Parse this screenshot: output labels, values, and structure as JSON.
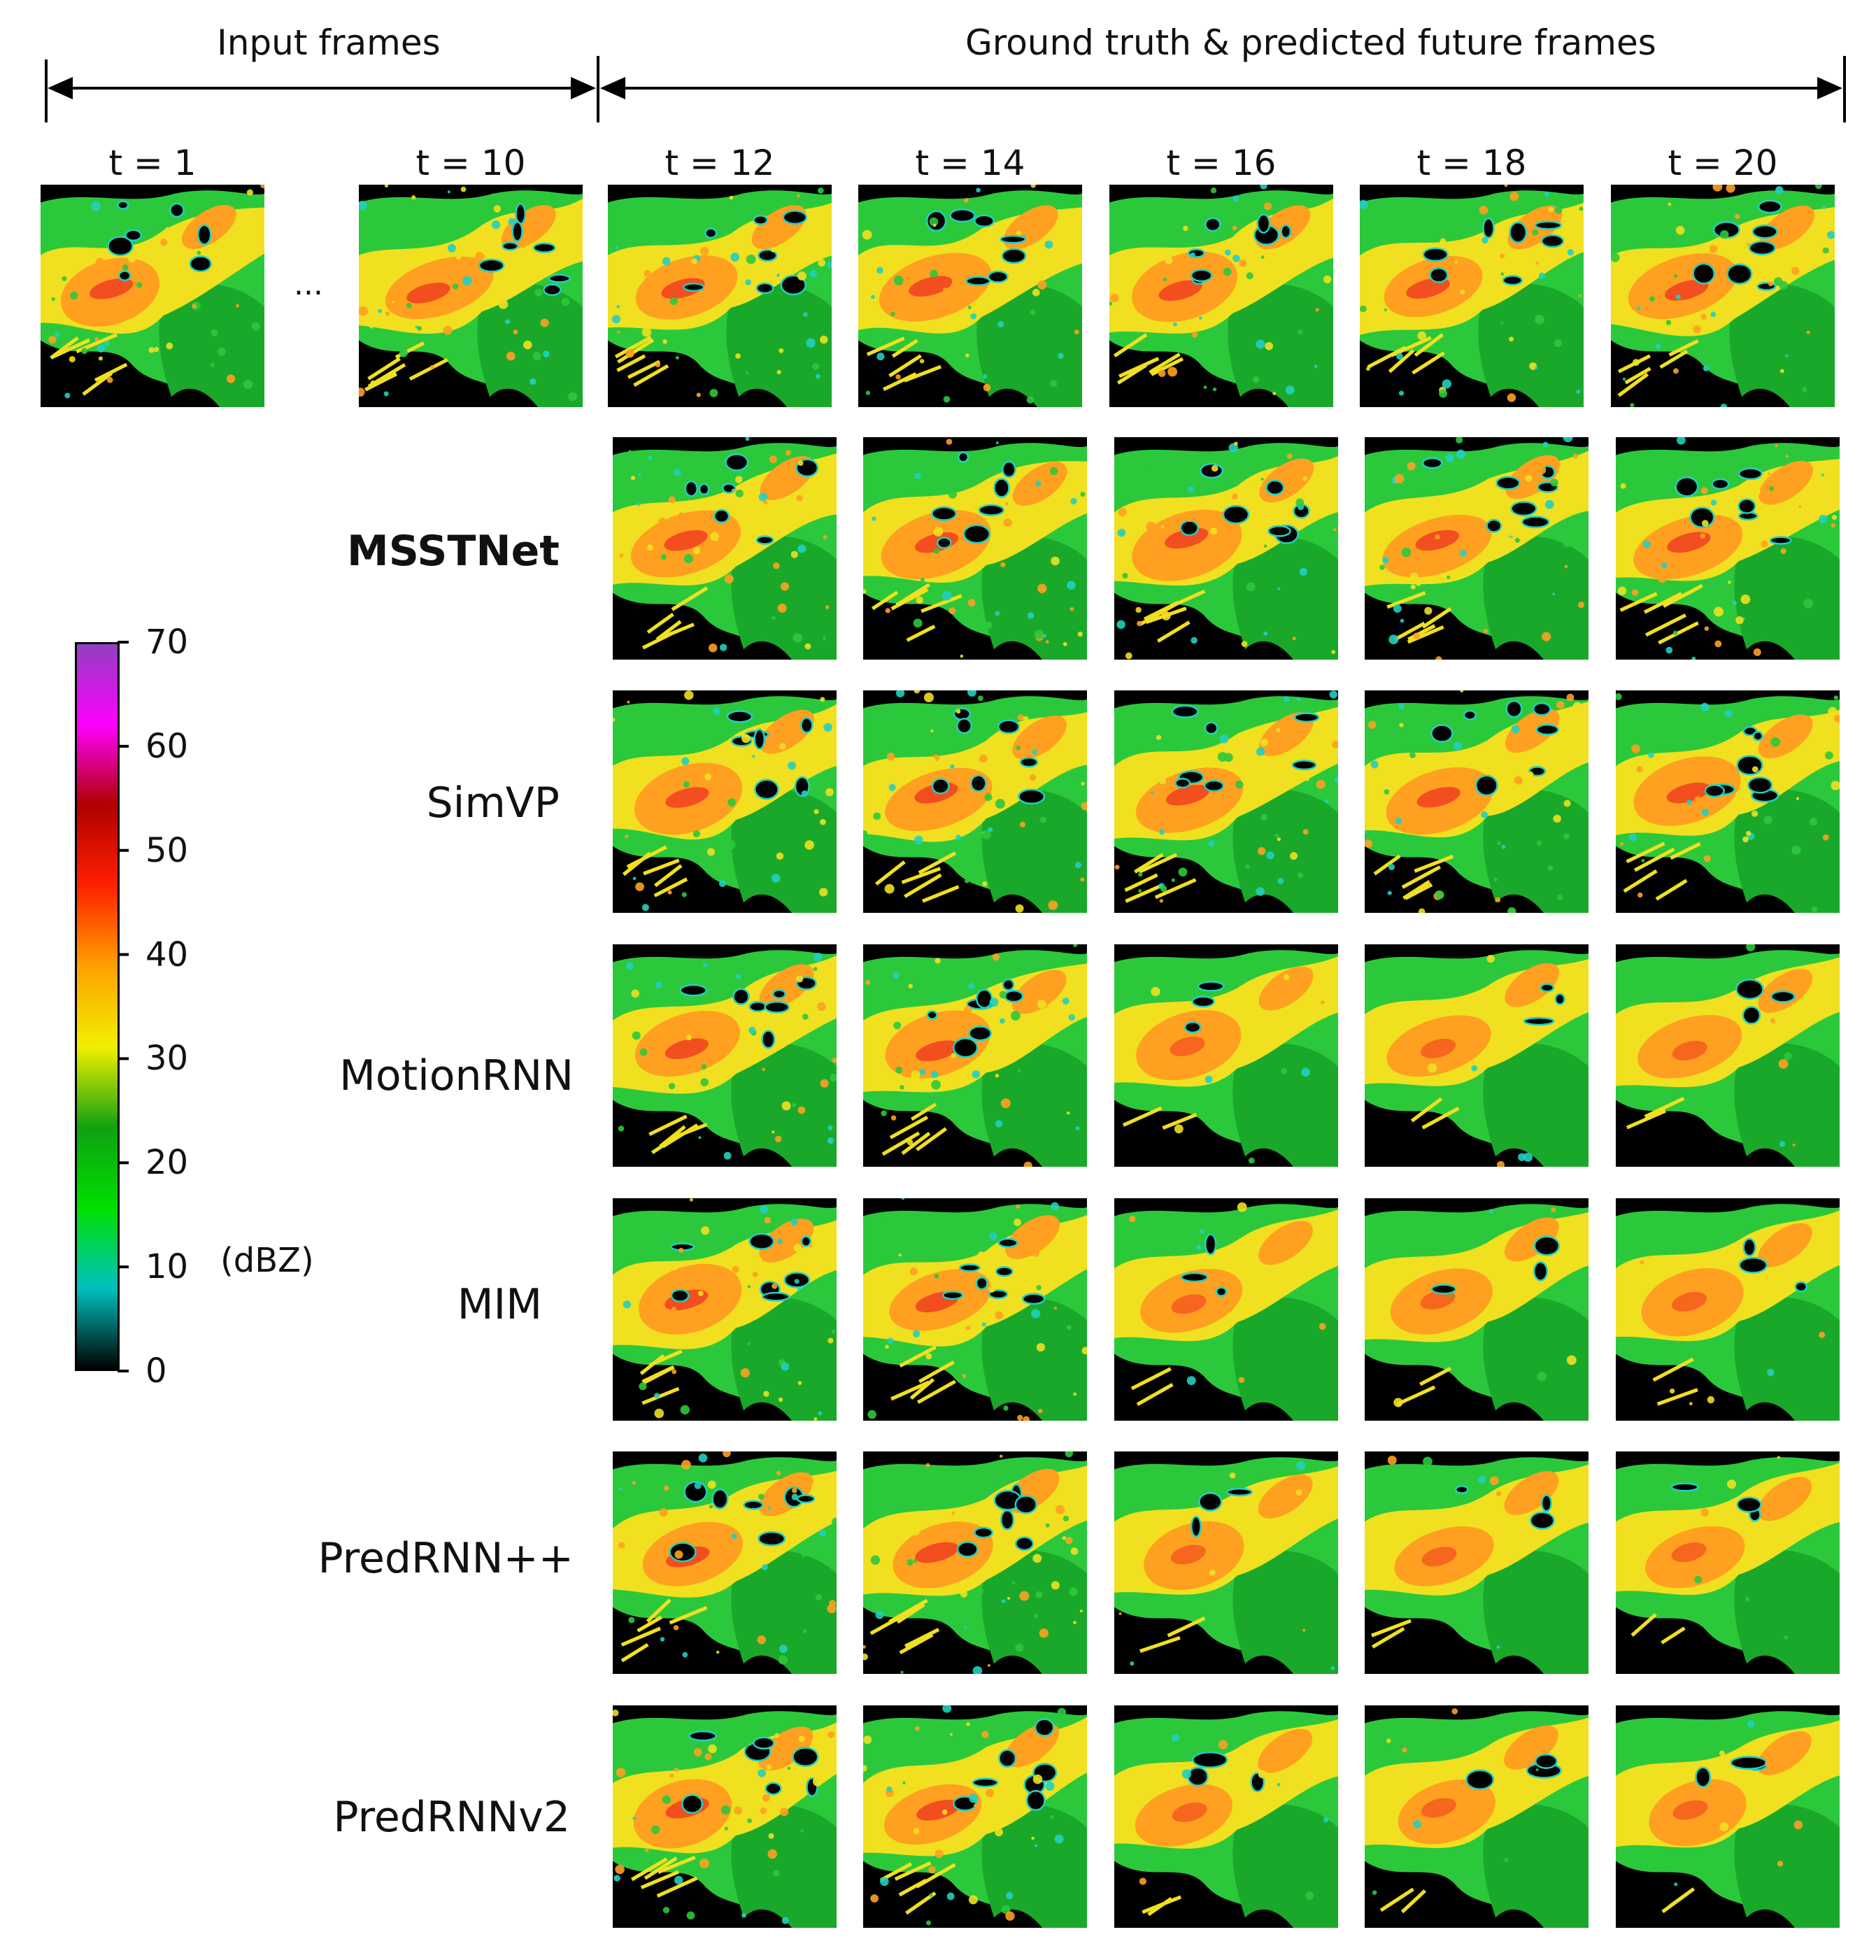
{
  "header": {
    "input_label": "Input frames",
    "future_label": "Ground truth & predicted future frames"
  },
  "time_labels": {
    "input": [
      "t = 1",
      "t = 10"
    ],
    "future": [
      "t = 12",
      "t = 14",
      "t = 16",
      "t = 18",
      "t = 20"
    ]
  },
  "ellipsis": "...",
  "models": [
    "MSSTNet",
    "SimVP",
    "MotionRNN",
    "MIM",
    "PredRNN++",
    "PredRNNv2"
  ],
  "colorbar": {
    "ticks": [
      "70",
      "60",
      "50",
      "40",
      "30",
      "20",
      "10",
      "0"
    ],
    "unit": "(dBZ)",
    "range": [
      0,
      70
    ],
    "stops": [
      "#000000",
      "#00c0c0",
      "#00e000",
      "#10a010",
      "#f0f000",
      "#ffa000",
      "#ff2000",
      "#b00000",
      "#ff00ff",
      "#9040c0"
    ]
  },
  "palette": {
    "black": "#000000",
    "cyan": "#20d0c0",
    "green": "#2cc83c",
    "darkgreen": "#1aa82a",
    "yellow": "#f0e020",
    "orange": "#ffa020",
    "red": "#f04020"
  }
}
